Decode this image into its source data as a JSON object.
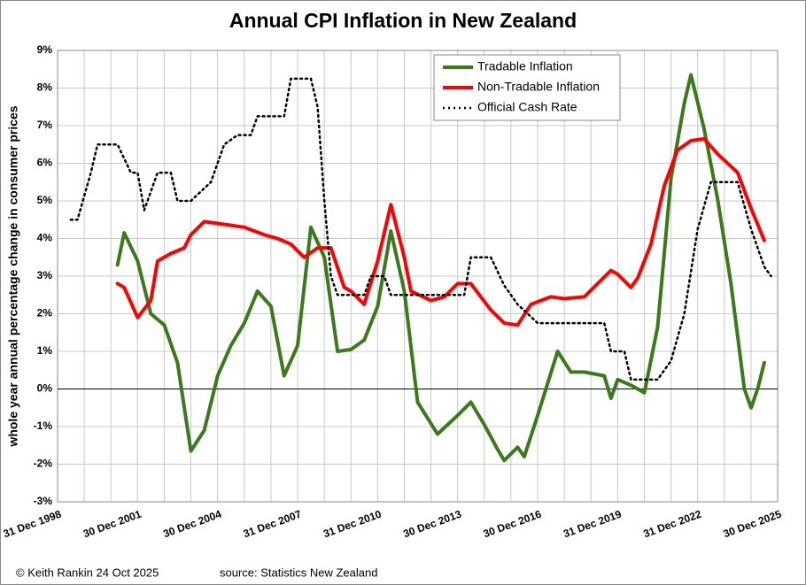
{
  "chart_data": {
    "type": "line",
    "title": "Annual CPI Inflation in New Zealand",
    "y_label": "whole year annual percentage change in consumer prices",
    "footer_left": "© Keith Rankin 24 Oct 2025",
    "footer_right": "source: Statistics New Zealand",
    "xlim": [
      "1998-12-31",
      "2025-12-30"
    ],
    "xticks": [
      {
        "value": "1998-12-31",
        "label": "31 Dec 1998"
      },
      {
        "value": "1999-12-31",
        "label": null
      },
      {
        "value": "2000-12-30",
        "label": null
      },
      {
        "value": "2001-12-30",
        "label": "30 Dec 2001"
      },
      {
        "value": "2002-12-30",
        "label": null
      },
      {
        "value": "2003-12-30",
        "label": null
      },
      {
        "value": "2004-12-30",
        "label": "30 Dec 2004"
      },
      {
        "value": "2005-12-31",
        "label": null
      },
      {
        "value": "2006-12-31",
        "label": null
      },
      {
        "value": "2007-12-31",
        "label": "31 Dec 2007"
      },
      {
        "value": "2008-12-31",
        "label": null
      },
      {
        "value": "2009-12-31",
        "label": null
      },
      {
        "value": "2010-12-31",
        "label": "31 Dec 2010"
      },
      {
        "value": "2011-12-31",
        "label": null
      },
      {
        "value": "2012-12-30",
        "label": null
      },
      {
        "value": "2013-12-30",
        "label": "30 Dec 2013"
      },
      {
        "value": "2014-12-30",
        "label": null
      },
      {
        "value": "2015-12-30",
        "label": null
      },
      {
        "value": "2016-12-30",
        "label": "30 Dec 2016"
      },
      {
        "value": "2017-12-31",
        "label": null
      },
      {
        "value": "2018-12-31",
        "label": null
      },
      {
        "value": "2019-12-31",
        "label": "31 Dec 2019"
      },
      {
        "value": "2020-12-31",
        "label": null
      },
      {
        "value": "2021-12-31",
        "label": null
      },
      {
        "value": "2022-12-31",
        "label": "31 Dec 2022"
      },
      {
        "value": "2023-12-31",
        "label": null
      },
      {
        "value": "2024-12-30",
        "label": null
      },
      {
        "value": "2025-12-30",
        "label": "30 Dec 2025"
      }
    ],
    "ylim": [
      -3,
      9
    ],
    "yticks": [
      {
        "value": -3,
        "label": "-3%"
      },
      {
        "value": -2,
        "label": "-2%"
      },
      {
        "value": -1,
        "label": "-1%"
      },
      {
        "value": 0,
        "label": "0%"
      },
      {
        "value": 1,
        "label": "1%"
      },
      {
        "value": 2,
        "label": "2%"
      },
      {
        "value": 3,
        "label": "3%"
      },
      {
        "value": 4,
        "label": "4%"
      },
      {
        "value": 5,
        "label": "5%"
      },
      {
        "value": 6,
        "label": "6%"
      },
      {
        "value": 7,
        "label": "7%"
      },
      {
        "value": 8,
        "label": "8%"
      },
      {
        "value": 9,
        "label": "9%"
      }
    ],
    "grid": true,
    "legend": "top-right",
    "series": [
      {
        "name": "Tradable Inflation",
        "color": "#3a7a1a",
        "dash": "solid",
        "x": [
          "2001-03-31",
          "2001-06-30",
          "2001-12-31",
          "2002-06-30",
          "2002-12-31",
          "2003-06-30",
          "2003-12-31",
          "2004-06-30",
          "2004-12-31",
          "2005-06-30",
          "2005-12-31",
          "2006-06-30",
          "2006-12-31",
          "2007-06-30",
          "2007-12-31",
          "2008-06-30",
          "2008-12-31",
          "2009-06-30",
          "2009-12-31",
          "2010-06-30",
          "2010-12-31",
          "2011-06-30",
          "2011-12-31",
          "2012-06-30",
          "2013-03-31",
          "2013-12-31",
          "2014-06-30",
          "2014-12-31",
          "2015-06-30",
          "2015-09-30",
          "2016-03-31",
          "2016-06-30",
          "2016-12-31",
          "2017-09-30",
          "2018-03-31",
          "2018-09-30",
          "2019-06-30",
          "2019-09-30",
          "2019-12-31",
          "2020-06-30",
          "2020-12-31",
          "2021-06-30",
          "2021-12-31",
          "2022-06-30",
          "2022-09-30",
          "2023-03-31",
          "2023-09-30",
          "2024-03-31",
          "2024-09-30",
          "2024-12-31",
          "2025-03-31",
          "2025-06-30"
        ],
        "values": [
          3.3,
          4.15,
          3.4,
          2.0,
          1.7,
          0.7,
          -1.65,
          -1.1,
          0.35,
          1.15,
          1.75,
          2.6,
          2.2,
          0.35,
          1.15,
          4.3,
          3.5,
          1.0,
          1.05,
          1.3,
          2.2,
          4.2,
          2.6,
          -0.35,
          -1.2,
          -0.7,
          -0.35,
          -0.95,
          -1.6,
          -1.9,
          -1.55,
          -1.8,
          -0.7,
          1.0,
          0.45,
          0.45,
          0.35,
          -0.25,
          0.25,
          0.1,
          -0.1,
          1.65,
          5.6,
          7.6,
          8.35,
          6.9,
          5.05,
          2.8,
          0.0,
          -0.5,
          0.0,
          0.7
        ]
      },
      {
        "name": "Non-Tradable Inflation",
        "color": "#ff0000",
        "dash": "solid",
        "x": [
          "2001-03-31",
          "2001-06-30",
          "2001-12-31",
          "2002-06-30",
          "2002-09-30",
          "2003-03-31",
          "2003-09-30",
          "2003-12-31",
          "2004-06-30",
          "2005-06-30",
          "2005-12-31",
          "2006-09-30",
          "2007-03-31",
          "2007-09-30",
          "2008-03-31",
          "2008-09-30",
          "2009-03-31",
          "2009-09-30",
          "2009-12-31",
          "2010-06-30",
          "2010-12-31",
          "2011-06-30",
          "2011-12-31",
          "2012-03-31",
          "2012-12-31",
          "2013-06-30",
          "2013-12-31",
          "2014-06-30",
          "2015-03-31",
          "2015-09-30",
          "2016-03-31",
          "2016-09-30",
          "2017-06-30",
          "2017-12-31",
          "2018-09-30",
          "2019-03-31",
          "2019-09-30",
          "2019-12-31",
          "2020-06-30",
          "2020-09-30",
          "2021-03-31",
          "2021-09-30",
          "2022-03-31",
          "2022-09-30",
          "2023-03-31",
          "2023-09-30",
          "2024-06-30",
          "2024-12-31",
          "2025-06-30"
        ],
        "values": [
          2.8,
          2.7,
          1.9,
          2.35,
          3.4,
          3.6,
          3.75,
          4.1,
          4.45,
          4.35,
          4.3,
          4.1,
          4.0,
          3.85,
          3.5,
          3.75,
          3.75,
          2.7,
          2.6,
          2.25,
          3.4,
          4.9,
          3.5,
          2.6,
          2.35,
          2.45,
          2.8,
          2.8,
          2.1,
          1.75,
          1.7,
          2.25,
          2.45,
          2.4,
          2.45,
          2.8,
          3.15,
          3.05,
          2.7,
          2.95,
          3.85,
          5.4,
          6.35,
          6.6,
          6.65,
          6.25,
          5.75,
          4.8,
          3.95
        ]
      },
      {
        "name": "Official Cash Rate",
        "color": "#000000",
        "dash": "dotted",
        "x": [
          "1999-06-30",
          "1999-09-30",
          "2000-03-31",
          "2000-06-30",
          "2001-03-31",
          "2001-09-30",
          "2001-12-31",
          "2002-03-31",
          "2002-09-30",
          "2003-03-31",
          "2003-06-30",
          "2003-12-31",
          "2004-09-30",
          "2005-03-31",
          "2005-09-30",
          "2006-03-31",
          "2006-06-30",
          "2007-06-30",
          "2007-09-30",
          "2008-06-30",
          "2008-09-30",
          "2008-12-31",
          "2009-03-31",
          "2009-06-30",
          "2010-06-30",
          "2010-09-30",
          "2011-03-31",
          "2011-06-30",
          "2014-03-31",
          "2014-06-30",
          "2015-03-31",
          "2015-09-30",
          "2016-03-31",
          "2016-12-31",
          "2019-06-30",
          "2019-09-30",
          "2020-03-31",
          "2020-06-30",
          "2021-06-30",
          "2021-12-31",
          "2022-06-30",
          "2022-12-31",
          "2023-06-30",
          "2024-06-30",
          "2024-12-31",
          "2025-06-30",
          "2025-09-30"
        ],
        "values": [
          4.5,
          4.5,
          5.75,
          6.5,
          6.5,
          5.75,
          5.75,
          4.75,
          5.75,
          5.75,
          5.0,
          5.0,
          5.5,
          6.5,
          6.75,
          6.75,
          7.25,
          7.25,
          8.25,
          8.25,
          7.5,
          5.0,
          3.0,
          2.5,
          2.5,
          3.0,
          3.0,
          2.5,
          2.5,
          3.5,
          3.5,
          2.75,
          2.25,
          1.75,
          1.75,
          1.0,
          1.0,
          0.25,
          0.25,
          0.75,
          2.0,
          4.25,
          5.5,
          5.5,
          4.25,
          3.25,
          3.0
        ]
      }
    ]
  }
}
